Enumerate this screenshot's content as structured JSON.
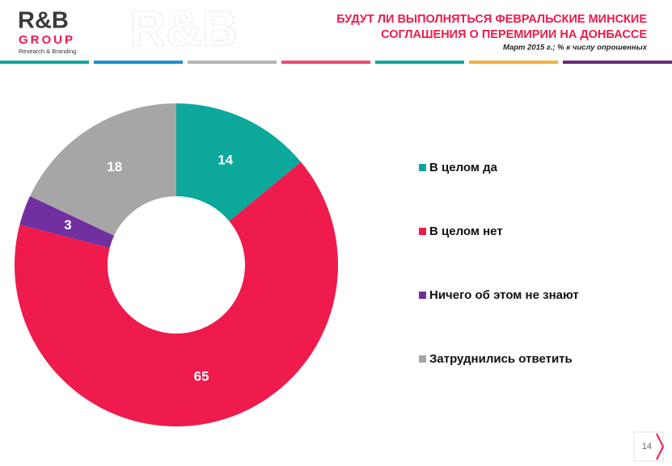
{
  "logo": {
    "name": "R&B",
    "group": "GROUP",
    "tagline": "Research & Branding"
  },
  "page_number": "14",
  "chart_data": {
    "type": "pie",
    "donut": true,
    "title": [
      "БУДУТ ЛИ ВЫПОЛНЯТЬСЯ ФЕВРАЛЬСКИЕ МИНСКИЕ",
      "СОГЛАШЕНИЯ О ПЕРЕМИРИИ НА ДОНБАССЕ"
    ],
    "subtitle": "Март  2015 г.; % к числу опрошенных",
    "categories": [
      "В целом да",
      "В целом нет",
      "Ничего об этом не знают",
      "Затруднились ответить"
    ],
    "values": [
      14,
      65,
      3,
      18
    ],
    "colors": [
      "#0ba89b",
      "#ee1b4c",
      "#7030a0",
      "#a6a6a6"
    ],
    "legend": "right"
  }
}
